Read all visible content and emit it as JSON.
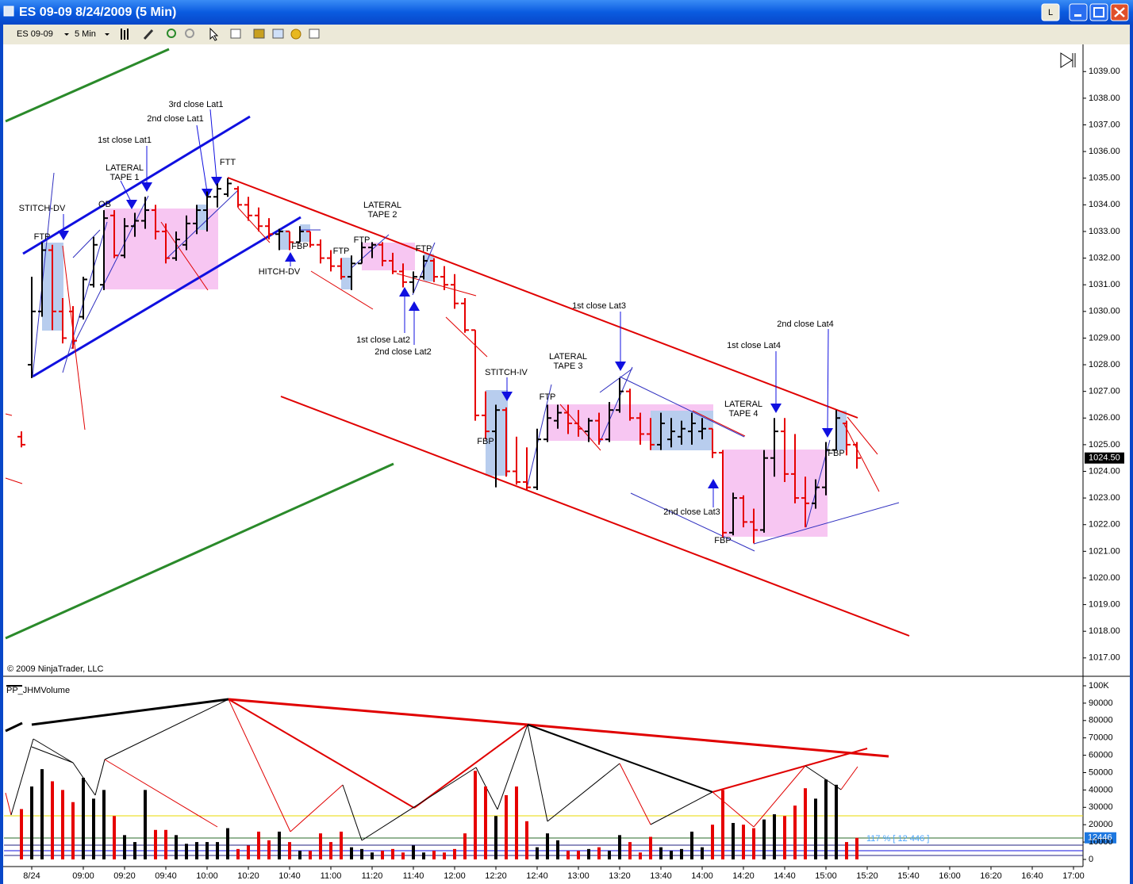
{
  "window": {
    "title": "ES 09-09  8/24/2009 (5 Min)",
    "instrument": "ES 09-09",
    "interval": "5 Min"
  },
  "chart_data": [
    {
      "type": "ohlc",
      "copyright": "© 2009 NinjaTrader, LLC",
      "up_color": "#000000",
      "down_color": "#e60000",
      "x": [
        510,
        515,
        520,
        525,
        530,
        535,
        540,
        545,
        550,
        555,
        560,
        565,
        570,
        575,
        580,
        585,
        590,
        595,
        600,
        605,
        610,
        615,
        620,
        625,
        630,
        635,
        640,
        645,
        650,
        655,
        660,
        665,
        670,
        675,
        680,
        685,
        690,
        695,
        700,
        705,
        710,
        715,
        720,
        725,
        730,
        735,
        740,
        745,
        750,
        755,
        760,
        765,
        770,
        775,
        780,
        785,
        790,
        795,
        800,
        805,
        810,
        815,
        820,
        825,
        830,
        835,
        840,
        845,
        850,
        855,
        860,
        865,
        870,
        875,
        880,
        885,
        890,
        895,
        900,
        905,
        910,
        915
      ],
      "open": [
        1025.3,
        1028.0,
        1030.0,
        1032.3,
        1030.0,
        1030.0,
        1029.8,
        1031.0,
        1031.0,
        1033.6,
        1032.1,
        1033.2,
        1033.4,
        1033.8,
        1033.0,
        1032.0,
        1032.5,
        1033.3,
        1033.8,
        1034.3,
        1034.4,
        1034.6,
        1034.0,
        1033.6,
        1033.2,
        1032.9,
        1033.0,
        1032.6,
        1033.0,
        1032.5,
        1032.0,
        1031.7,
        1031.3,
        1031.8,
        1032.4,
        1032.5,
        1031.9,
        1031.5,
        1031.1,
        1031.3,
        1031.9,
        1031.3,
        1031.0,
        1030.3,
        1029.3,
        1026.1,
        1025.5,
        1026.3,
        1024.0,
        1023.6,
        1023.4,
        1025.2,
        1025.9,
        1026.2,
        1025.8,
        1025.5,
        1025.9,
        1025.2,
        1026.3,
        1027.0,
        1026.0,
        1025.4,
        1025.0,
        1025.2,
        1025.3,
        1025.5,
        1025.5,
        1025.6,
        1024.7,
        1021.7,
        1023.0,
        1022.1,
        1021.8,
        1024.5,
        1025.5,
        1023.9,
        1023.0,
        1022.8,
        1023.4,
        1024.8,
        1025.8,
        1025.0
      ],
      "high": [
        1025.5,
        1031.3,
        1032.6,
        1032.5,
        1030.5,
        1030.2,
        1031.3,
        1032.8,
        1033.8,
        1033.8,
        1033.5,
        1033.7,
        1034.3,
        1034.0,
        1033.3,
        1033.0,
        1033.6,
        1034.0,
        1034.5,
        1034.8,
        1035.0,
        1034.7,
        1034.3,
        1033.9,
        1033.5,
        1033.1,
        1033.0,
        1033.2,
        1033.0,
        1032.7,
        1032.3,
        1032.0,
        1032.1,
        1032.6,
        1032.6,
        1032.6,
        1032.2,
        1031.8,
        1031.5,
        1032.1,
        1032.0,
        1031.7,
        1031.4,
        1030.5,
        1029.3,
        1027.0,
        1026.5,
        1026.4,
        1025.3,
        1024.9,
        1025.6,
        1026.5,
        1026.5,
        1026.5,
        1026.3,
        1026.0,
        1026.2,
        1026.6,
        1027.5,
        1027.1,
        1026.2,
        1026.0,
        1026.2,
        1026.0,
        1025.9,
        1026.2,
        1026.0,
        1025.6,
        1024.8,
        1023.2,
        1023.1,
        1022.6,
        1024.8,
        1026.0,
        1026.0,
        1025.4,
        1023.8,
        1023.7,
        1025.1,
        1026.3,
        1025.9,
        1025.1
      ],
      "low": [
        1024.9,
        1027.5,
        1029.8,
        1029.3,
        1028.8,
        1028.6,
        1029.7,
        1030.9,
        1030.8,
        1032.0,
        1032.0,
        1032.8,
        1033.1,
        1032.7,
        1031.8,
        1031.9,
        1032.3,
        1032.9,
        1033.0,
        1033.9,
        1034.3,
        1033.9,
        1033.4,
        1033.0,
        1032.7,
        1032.3,
        1032.3,
        1032.6,
        1032.4,
        1031.8,
        1031.5,
        1031.2,
        1030.8,
        1031.8,
        1032.0,
        1031.7,
        1031.4,
        1030.9,
        1030.7,
        1031.2,
        1031.1,
        1030.8,
        1030.1,
        1029.2,
        1025.9,
        1025.2,
        1023.4,
        1023.8,
        1023.5,
        1023.3,
        1023.3,
        1025.1,
        1025.6,
        1025.4,
        1025.3,
        1025.1,
        1025.0,
        1025.1,
        1026.2,
        1025.9,
        1025.0,
        1024.8,
        1024.8,
        1024.9,
        1025.0,
        1025.0,
        1025.2,
        1024.5,
        1021.5,
        1021.6,
        1021.9,
        1021.3,
        1021.7,
        1023.8,
        1023.6,
        1022.8,
        1021.9,
        1022.6,
        1023.1,
        1024.8,
        1024.6,
        1024.1
      ],
      "close": [
        1025.0,
        1030.0,
        1032.3,
        1030.0,
        1029.0,
        1028.9,
        1031.2,
        1032.5,
        1033.5,
        1032.1,
        1033.2,
        1033.4,
        1033.8,
        1033.0,
        1032.0,
        1032.7,
        1033.3,
        1033.8,
        1034.3,
        1034.6,
        1034.8,
        1034.0,
        1033.6,
        1033.2,
        1032.9,
        1033.0,
        1032.6,
        1033.0,
        1032.5,
        1032.0,
        1031.7,
        1031.3,
        1031.8,
        1032.4,
        1032.5,
        1031.9,
        1031.5,
        1031.1,
        1031.3,
        1031.9,
        1031.3,
        1031.0,
        1030.3,
        1029.3,
        1026.1,
        1025.5,
        1026.3,
        1024.0,
        1023.6,
        1023.4,
        1025.2,
        1026.0,
        1026.2,
        1025.8,
        1025.6,
        1025.9,
        1025.2,
        1026.3,
        1027.0,
        1026.0,
        1025.4,
        1025.0,
        1025.8,
        1025.5,
        1025.6,
        1025.8,
        1025.6,
        1024.7,
        1021.7,
        1023.0,
        1022.1,
        1021.8,
        1024.5,
        1025.5,
        1023.9,
        1023.0,
        1022.8,
        1023.4,
        1024.8,
        1026.0,
        1025.0,
        1024.5
      ],
      "last_price": {
        "value": 1024.5,
        "label": "1024.50"
      },
      "xlim": [
        500,
        1025
      ],
      "ylim": [
        1016.4,
        1039.9
      ],
      "yticks": [
        {
          "value": 1017,
          "label": "1017.00"
        },
        {
          "value": 1018,
          "label": "1018.00"
        },
        {
          "value": 1019,
          "label": "1019.00"
        },
        {
          "value": 1020,
          "label": "1020.00"
        },
        {
          "value": 1021,
          "label": "1021.00"
        },
        {
          "value": 1022,
          "label": "1022.00"
        },
        {
          "value": 1023,
          "label": "1023.00"
        },
        {
          "value": 1024,
          "label": "1024.00"
        },
        {
          "value": 1025,
          "label": "1025.00"
        },
        {
          "value": 1026,
          "label": "1026.00"
        },
        {
          "value": 1027,
          "label": "1027.00"
        },
        {
          "value": 1028,
          "label": "1028.00"
        },
        {
          "value": 1029,
          "label": "1029.00"
        },
        {
          "value": 1030,
          "label": "1030.00"
        },
        {
          "value": 1031,
          "label": "1031.00"
        },
        {
          "value": 1032,
          "label": "1032.00"
        },
        {
          "value": 1033,
          "label": "1033.00"
        },
        {
          "value": 1034,
          "label": "1034.00"
        },
        {
          "value": 1035,
          "label": "1035.00"
        },
        {
          "value": 1036,
          "label": "1036.00"
        },
        {
          "value": 1037,
          "label": "1037.00"
        },
        {
          "value": 1038,
          "label": "1038.00"
        },
        {
          "value": 1039,
          "label": "1039.00"
        }
      ],
      "annotations": [
        "STITCH-DV",
        "FTP",
        "OB",
        "LATERAL",
        "TAPE 1",
        "1st close Lat1",
        "2nd close Lat1",
        "3rd close Lat1",
        "FTT",
        "FBP",
        "HITCH-DV",
        "FTP",
        "FTP",
        "LATERAL",
        "TAPE 2",
        "FTP",
        "1st close Lat2",
        "2nd close Lat2",
        "STITCH-IV",
        "FBP",
        "FTP",
        "LATERAL",
        "TAPE 3",
        "1st close Lat3",
        "2nd close Lat3",
        "LATERAL",
        "TAPE 4",
        "1st close Lat4",
        "2nd close Lat4",
        "FBP",
        "FBP"
      ]
    },
    {
      "type": "bar",
      "title": "PP_JHMVolume",
      "x": [
        510,
        515,
        520,
        525,
        530,
        535,
        540,
        545,
        550,
        555,
        560,
        565,
        570,
        575,
        580,
        585,
        590,
        595,
        600,
        605,
        610,
        615,
        620,
        625,
        630,
        635,
        640,
        645,
        650,
        655,
        660,
        665,
        670,
        675,
        680,
        685,
        690,
        695,
        700,
        705,
        710,
        715,
        720,
        725,
        730,
        735,
        740,
        745,
        750,
        755,
        760,
        765,
        770,
        775,
        780,
        785,
        790,
        795,
        800,
        805,
        810,
        815,
        820,
        825,
        830,
        835,
        840,
        845,
        850,
        855,
        860,
        865,
        870,
        875,
        880,
        885,
        890,
        895,
        900,
        905,
        910,
        915
      ],
      "values": [
        29000,
        42000,
        52000,
        45000,
        40000,
        33000,
        47000,
        35000,
        40000,
        25000,
        14000,
        10000,
        40000,
        17000,
        17000,
        14000,
        9000,
        10000,
        10000,
        10000,
        18000,
        6000,
        8000,
        16000,
        11000,
        16000,
        10000,
        5000,
        5000,
        15000,
        10000,
        16000,
        7000,
        6000,
        4000,
        5000,
        6000,
        4000,
        8000,
        4000,
        5000,
        4000,
        6000,
        15000,
        51000,
        42000,
        25000,
        37000,
        42000,
        22000,
        7000,
        15000,
        11000,
        5000,
        5000,
        6000,
        7000,
        5000,
        14000,
        10000,
        4000,
        13000,
        7000,
        5000,
        6000,
        16000,
        7000,
        20000,
        40000,
        21000,
        20000,
        18000,
        23000,
        26000,
        25000,
        31000,
        41000,
        35000,
        46000,
        43000,
        10000,
        12446
      ],
      "note": "117 % [ 12 446 ]",
      "xlim": [
        500,
        1025
      ],
      "ylim": [
        0,
        100000
      ],
      "yticks": [
        0,
        10000,
        20000,
        30000,
        40000,
        50000,
        60000,
        70000,
        80000,
        90000,
        {
          "value": 100000,
          "label": "100K"
        }
      ],
      "xticks": [
        {
          "value": 515,
          "label": "8/24"
        },
        {
          "value": 540,
          "label": "09:00"
        },
        {
          "value": 560,
          "label": "09:20"
        },
        {
          "value": 580,
          "label": "09:40"
        },
        {
          "value": 600,
          "label": "10:00"
        },
        {
          "value": 620,
          "label": "10:20"
        },
        {
          "value": 640,
          "label": "10:40"
        },
        {
          "value": 660,
          "label": "11:00"
        },
        {
          "value": 680,
          "label": "11:20"
        },
        {
          "value": 700,
          "label": "11:40"
        },
        {
          "value": 720,
          "label": "12:00"
        },
        {
          "value": 740,
          "label": "12:20"
        },
        {
          "value": 760,
          "label": "12:40"
        },
        {
          "value": 780,
          "label": "13:00"
        },
        {
          "value": 800,
          "label": "13:20"
        },
        {
          "value": 820,
          "label": "13:40"
        },
        {
          "value": 840,
          "label": "14:00"
        },
        {
          "value": 860,
          "label": "14:20"
        },
        {
          "value": 880,
          "label": "14:40"
        },
        {
          "value": 900,
          "label": "15:00"
        },
        {
          "value": 920,
          "label": "15:20"
        },
        {
          "value": 940,
          "label": "15:40"
        },
        {
          "value": 960,
          "label": "16:00"
        },
        {
          "value": 980,
          "label": "16:20"
        },
        {
          "value": 1000,
          "label": "16:40"
        },
        {
          "value": 1020,
          "label": "17:00"
        }
      ],
      "grid": true
    }
  ]
}
